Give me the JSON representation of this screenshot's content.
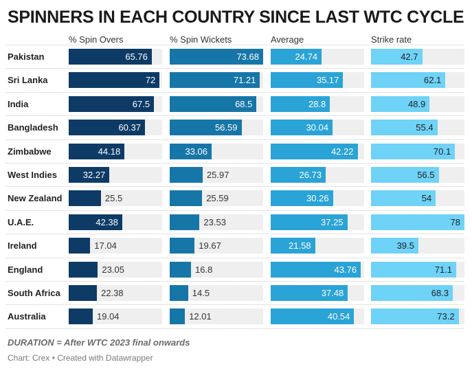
{
  "title": "SPINNERS IN EACH COUNTRY SINCE LAST WTC CYCLE",
  "footnote": "DURATION = After WTC 2023 final onwards",
  "source": "Chart: Crex • Created with Datawrapper",
  "colors": {
    "spin_overs": "#0d3b66",
    "spin_wickets": "#1776a8",
    "average": "#2aa3d6",
    "strike_rate": "#6fd2f7",
    "track": "#efefef",
    "separator": "#c8c8c8"
  },
  "chart_data": {
    "type": "bar",
    "title": "SPINNERS IN EACH COUNTRY SINCE LAST WTC CYCLE",
    "categories": [
      "Pakistan",
      "Sri Lanka",
      "India",
      "Bangladesh",
      "Zimbabwe",
      "West Indies",
      "New Zealand",
      "U.A.E.",
      "Ireland",
      "England",
      "South Africa",
      "Australia"
    ],
    "series": [
      {
        "name": "% Spin Overs",
        "max": 74,
        "values": [
          65.76,
          72,
          67.5,
          60.37,
          44.18,
          32.27,
          25.5,
          42.38,
          17.04,
          23.05,
          22.38,
          19.04
        ]
      },
      {
        "name": "% Spin Wickets",
        "max": 73.68,
        "values": [
          73.68,
          71.21,
          68.5,
          56.59,
          33.06,
          25.97,
          25.59,
          23.53,
          19.67,
          16.8,
          14.5,
          12.01
        ]
      },
      {
        "name": "Average",
        "max": 45.4,
        "values": [
          24.74,
          35.17,
          28.8,
          30.04,
          42.22,
          26.73,
          30.26,
          37.25,
          21.58,
          43.76,
          37.48,
          40.54
        ]
      },
      {
        "name": "Strike rate",
        "max": 78,
        "values": [
          "42.7",
          "62.1",
          "48.9",
          "55.4",
          "70.1",
          "56.5",
          "54",
          "78",
          "39.5",
          "71.1",
          "68.3",
          "73.2"
        ]
      }
    ],
    "legend": "none",
    "grid": false
  }
}
